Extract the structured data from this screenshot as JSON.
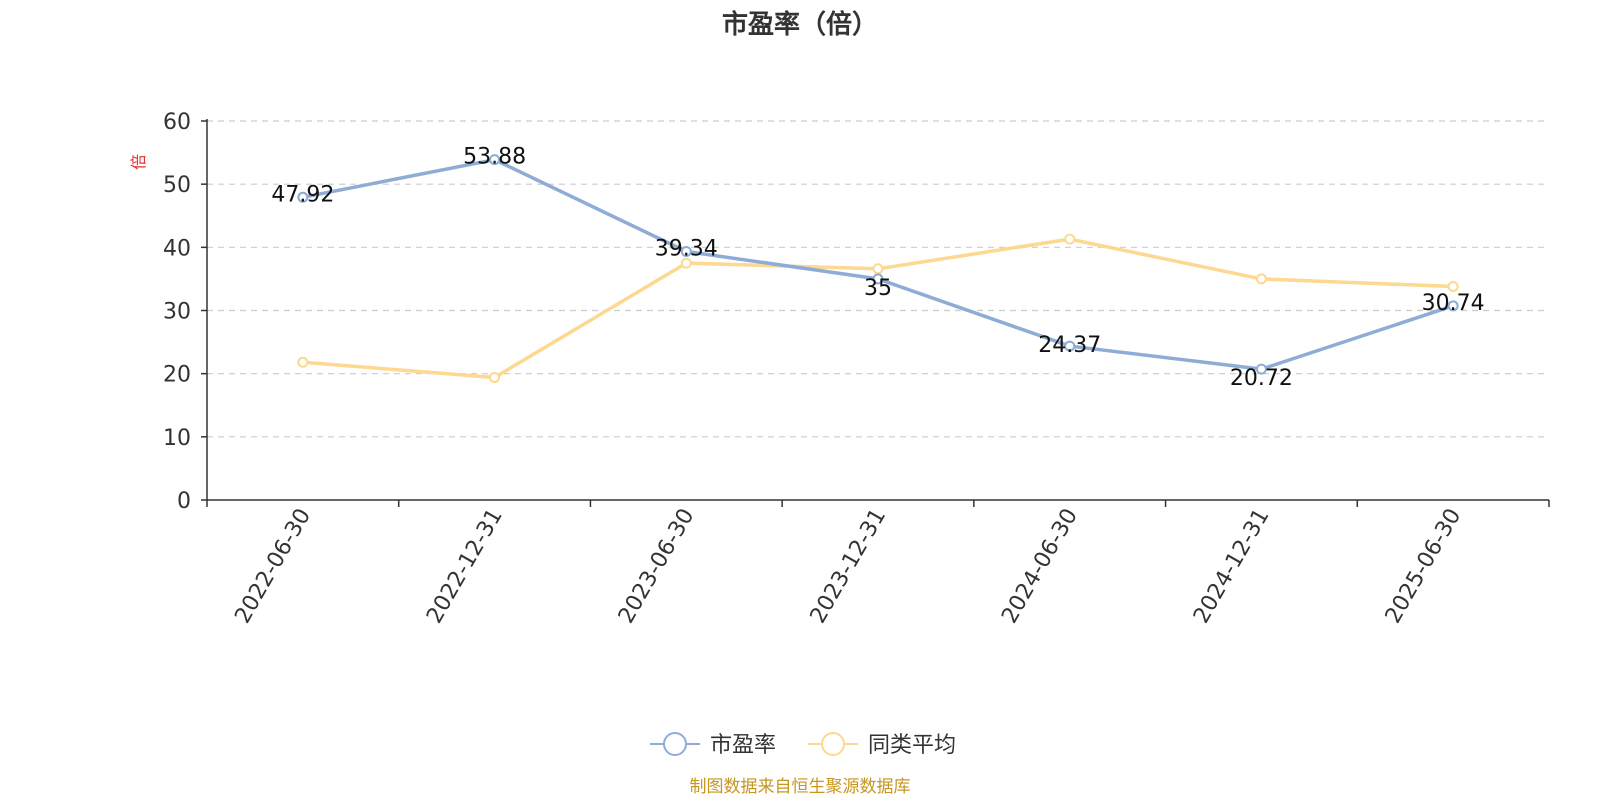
{
  "chart_data": {
    "type": "line",
    "title": "市盈率（倍）",
    "unit_label": "倍",
    "categories": [
      "2022-06-30",
      "2022-12-31",
      "2023-06-30",
      "2023-12-31",
      "2024-06-30",
      "2024-12-31",
      "2025-06-30"
    ],
    "series": [
      {
        "name": "市盈率",
        "values": [
          47.92,
          53.88,
          39.34,
          35,
          24.37,
          20.72,
          30.74
        ],
        "color": "#8eacd6",
        "data_labels": [
          "47.92",
          "53.88",
          "39.34",
          "35",
          "24.37",
          "20.72",
          "30.74"
        ]
      },
      {
        "name": "同类平均",
        "values": [
          21.8,
          19.4,
          37.5,
          36.6,
          41.3,
          35.0,
          33.8
        ],
        "color": "#fcd890"
      }
    ],
    "ylim": [
      0,
      60
    ],
    "yticks": [
      "0",
      "10",
      "20",
      "30",
      "40",
      "50",
      "60"
    ],
    "grid": true,
    "legend": "bottom-center"
  },
  "source": "制图数据来自恒生聚源数据库",
  "colors": {
    "unit_label": "#e03030",
    "source": "#c8961e",
    "axis": "#333333",
    "grid": "#cccccc"
  }
}
